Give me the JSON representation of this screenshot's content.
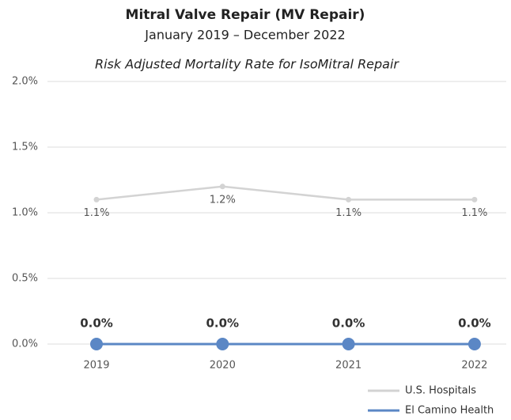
{
  "chart_data": {
    "type": "line",
    "title": "Mitral Valve Repair (MV Repair)",
    "subtitle": "January 2019 – December 2022",
    "y_label": "Risk Adjusted Mortality Rate for IsoMitral Repair",
    "categories": [
      "2019",
      "2020",
      "2021",
      "2022"
    ],
    "series": [
      {
        "name": "U.S. Hospitals",
        "color": "#d3d3d3",
        "values": [
          1.1,
          1.2,
          1.1,
          1.1
        ],
        "value_labels": [
          "1.1%",
          "1.2%",
          "1.1%",
          "1.1%"
        ]
      },
      {
        "name": "El Camino Health",
        "color": "#5b87c5",
        "values": [
          0,
          0,
          0,
          0
        ],
        "value_labels": [
          "0.0%",
          "0.0%",
          "0.0%",
          "0.0%"
        ]
      }
    ],
    "ylim": [
      0,
      2
    ],
    "yticks": [
      {
        "value": 0,
        "label": "0.0%"
      },
      {
        "value": 0.5,
        "label": "0.5%"
      },
      {
        "value": 1,
        "label": "1.0%"
      },
      {
        "value": 1.5,
        "label": "1.5%"
      },
      {
        "value": 2,
        "label": "2.0%"
      }
    ],
    "grid": true,
    "legend": "bottom-right"
  }
}
